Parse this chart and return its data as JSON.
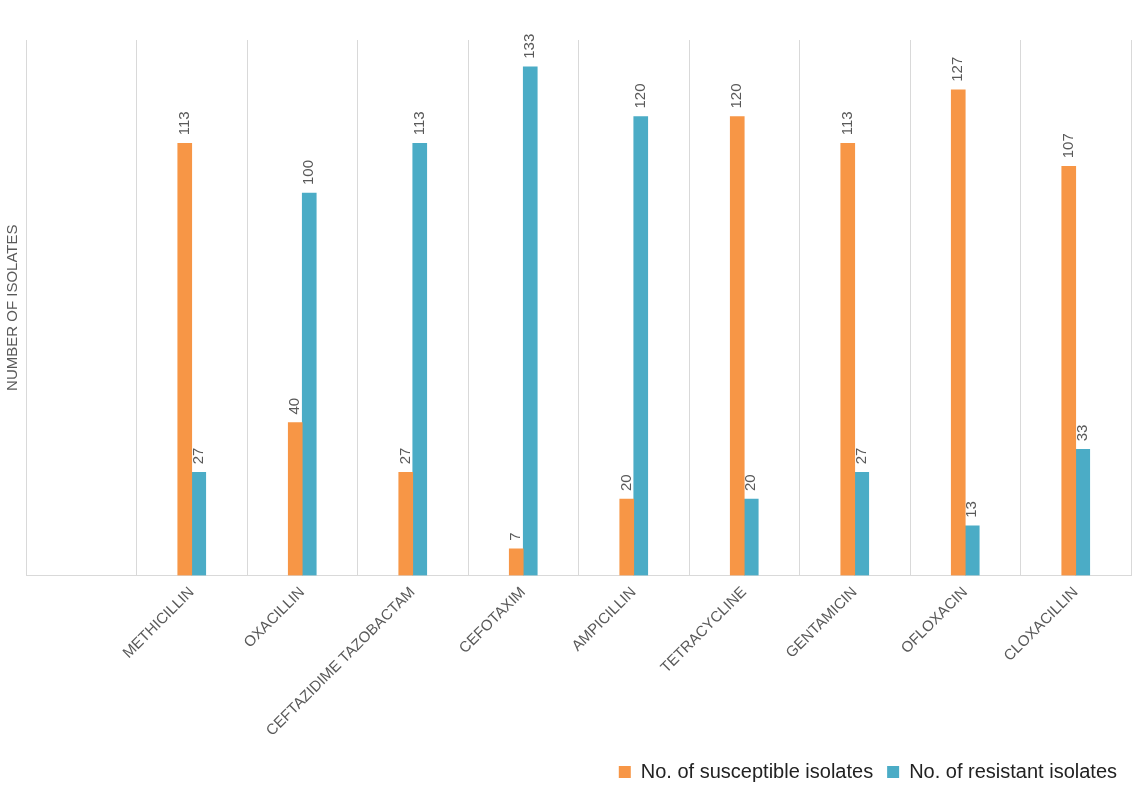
{
  "chart_data": {
    "type": "bar",
    "ylabel": "NUMBER OF ISOLATES",
    "categories": [
      null,
      "METHICILLIN",
      "OXACILLIN",
      "CEFTAZIDIME TAZOBACTAM",
      "CEFOTAXIM",
      "AMPICILLIN",
      "TETRACYCLINE",
      "GENTAMICIN",
      "OFLOXACIN",
      "CLOXACILLIN"
    ],
    "series": [
      {
        "name": "No. of susceptible isolates",
        "color": "#f79646",
        "values": [
          null,
          113,
          40,
          27,
          7,
          20,
          120,
          113,
          127,
          107
        ]
      },
      {
        "name": "No. of resistant isolates",
        "color": "#4bacc6",
        "values": [
          null,
          27,
          100,
          113,
          133,
          120,
          20,
          27,
          13,
          33
        ]
      }
    ],
    "data_labels": true,
    "grid": "x",
    "legend": "bottom right"
  }
}
